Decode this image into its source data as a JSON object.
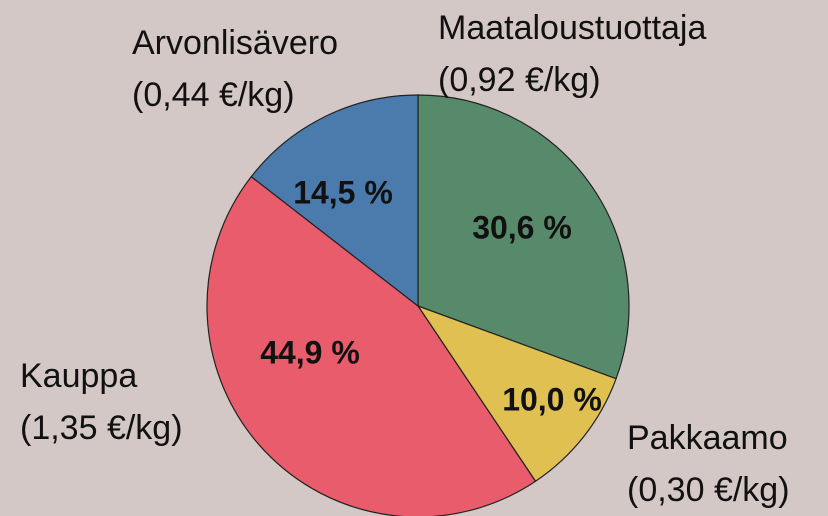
{
  "chart_data": {
    "type": "pie",
    "categories": [
      "Maataloustuottaja",
      "Pakkaamo",
      "Kauppa",
      "Arvonlisävero"
    ],
    "price_labels": [
      "(0,92 €/kg)",
      "(0,30 €/kg)",
      "(1,35 €/kg)",
      "(0,44 €/kg)"
    ],
    "values": [
      30.6,
      10.0,
      44.9,
      14.5
    ],
    "value_labels": [
      "30,6 %",
      "10,0 %",
      "44,9 %",
      "14,5 %"
    ],
    "colors": [
      "#568a6b",
      "#e0c050",
      "#e95c6b",
      "#4b7bad"
    ]
  }
}
